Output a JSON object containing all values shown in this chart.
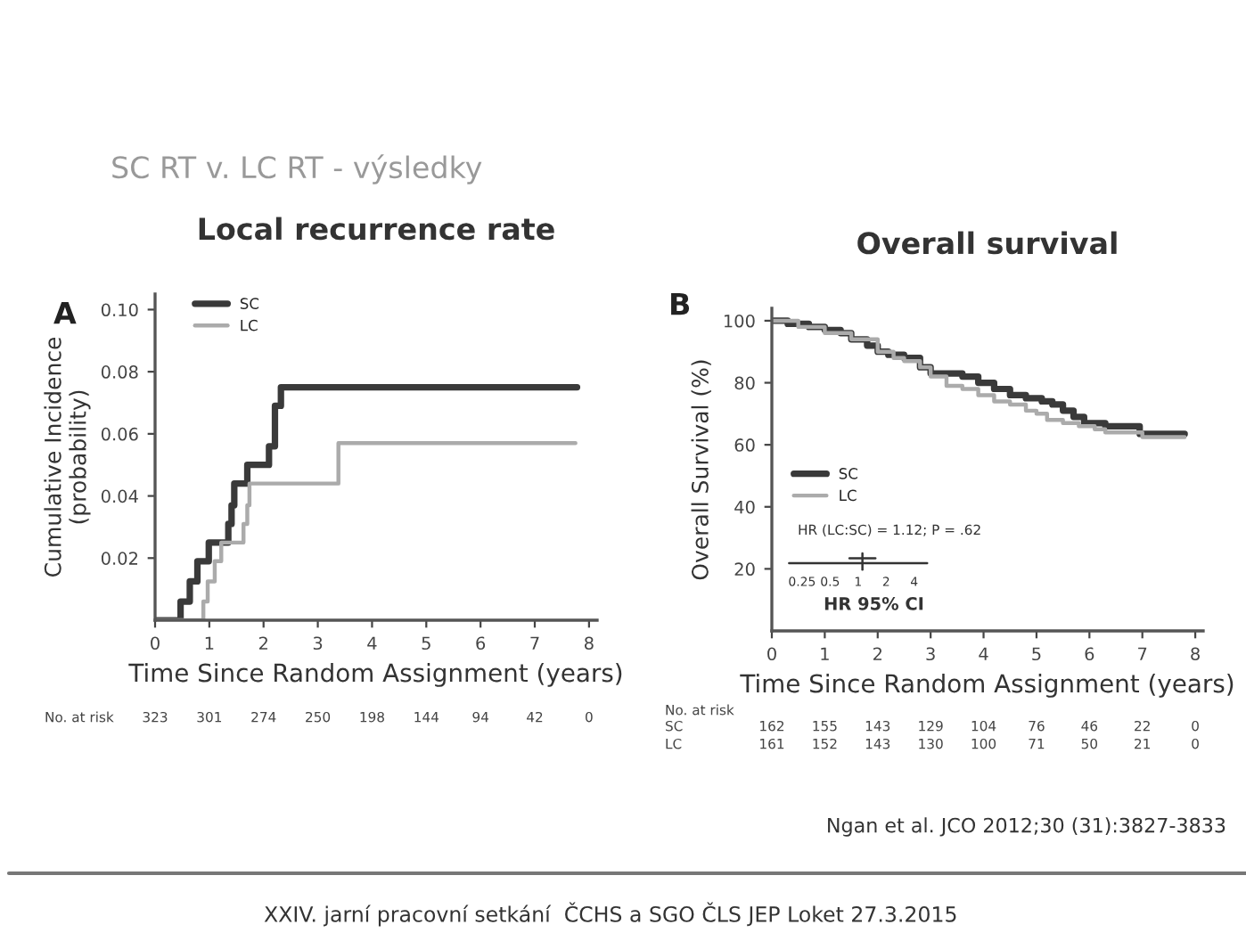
{
  "chart_data": [
    {
      "type": "step",
      "title": "Local recurrence rate",
      "xlabel": "Time Since Random Assignment (years)",
      "ylabel": "Cumulative Incidence\n(probability)",
      "series": [
        {
          "name": "SC",
          "color": "#3a3a3a",
          "x": [
            0,
            0.47,
            0.64,
            0.78,
            0.99,
            1.35,
            1.41,
            1.46,
            1.7,
            2.1,
            2.21,
            2.32,
            7.78
          ],
          "values": [
            0,
            0.006,
            0.0125,
            0.019,
            0.025,
            0.031,
            0.037,
            0.044,
            0.05,
            0.056,
            0.069,
            0.075,
            0.075
          ]
        },
        {
          "name": "LC",
          "color": "#ababab",
          "x": [
            0,
            0.89,
            0.97,
            1.1,
            1.22,
            1.63,
            1.7,
            1.74,
            3.38,
            7.75
          ],
          "values": [
            0,
            0.006,
            0.0125,
            0.019,
            0.025,
            0.031,
            0.037,
            0.044,
            0.057,
            0.057
          ]
        }
      ],
      "xlim": [
        0,
        8.15
      ],
      "xticks": [
        0,
        1,
        2,
        3,
        4,
        5,
        6,
        7,
        8
      ],
      "ylim": [
        0,
        0.105
      ],
      "yticks": [
        0.02,
        0.04,
        0.06,
        {
          "value": 0.08,
          "label": "0.08"
        },
        {
          "value": 0.1,
          "label": "0.10"
        }
      ],
      "legend": "top left",
      "grid": false,
      "annotations": [
        "SC RT v. LC RT - výsledky",
        "A",
        "No. at risk",
        "323",
        "301",
        "274",
        "250",
        "198",
        "144",
        "94",
        "42",
        "0"
      ]
    },
    {
      "type": "step",
      "title": "Overall survival",
      "xlabel": "Time Since Random Assignment (years)",
      "ylabel": "Overall Survival (%)",
      "series": [
        {
          "name": "SC",
          "color": "#3a3a3a",
          "x": [
            0,
            0.3,
            0.7,
            1.0,
            1.3,
            1.5,
            1.8,
            2.0,
            2.2,
            2.5,
            2.8,
            3.0,
            3.3,
            3.6,
            3.9,
            4.2,
            4.5,
            4.8,
            5.1,
            5.3,
            5.5,
            5.7,
            5.9,
            6.3,
            6.95,
            7.8
          ],
          "values": [
            100,
            99,
            98,
            97,
            96,
            94,
            92,
            90,
            89,
            88,
            85,
            83,
            83,
            82,
            80,
            78,
            76,
            75,
            74,
            73,
            71,
            69,
            67,
            66,
            63.5,
            63.5
          ]
        },
        {
          "name": "LC",
          "color": "#ababab",
          "x": [
            0,
            0.5,
            1.0,
            1.5,
            2.0,
            2.3,
            2.5,
            2.8,
            3.0,
            3.3,
            3.6,
            3.9,
            4.2,
            4.5,
            4.8,
            5.0,
            5.2,
            5.5,
            5.8,
            6.1,
            6.3,
            7.0,
            7.8
          ],
          "values": [
            100,
            98,
            96,
            94,
            90,
            88,
            87,
            85,
            82,
            79,
            78,
            76,
            74,
            73,
            71,
            70,
            68,
            67,
            66,
            65,
            64,
            62.5,
            62.5
          ]
        }
      ],
      "xlim": [
        0,
        8.15
      ],
      "xticks": [
        0,
        1,
        2,
        3,
        4,
        5,
        6,
        7,
        8
      ],
      "ylim": [
        0,
        104
      ],
      "yticks": [
        20,
        40,
        60,
        80,
        100
      ],
      "legend": "center left",
      "grid": false,
      "annotations": [
        "B",
        "HR (LC:SC) = 1.12; P = .62",
        "0.25",
        "0.5",
        "1",
        "2",
        "4",
        "HR 95% CI",
        "No. at risk",
        "SC",
        "162",
        "155",
        "143",
        "129",
        "104",
        "76",
        "46",
        "22",
        "0",
        "LC",
        "161",
        "152",
        "143",
        "130",
        "100",
        "71",
        "50",
        "21",
        "0",
        "Ngan et al. JCO 2012;30 (31):3827-3833",
        "XXIV. jarní pracovní setkání  ČCHS a SGO ČLS JEP Loket 27.3.2015"
      ]
    }
  ]
}
